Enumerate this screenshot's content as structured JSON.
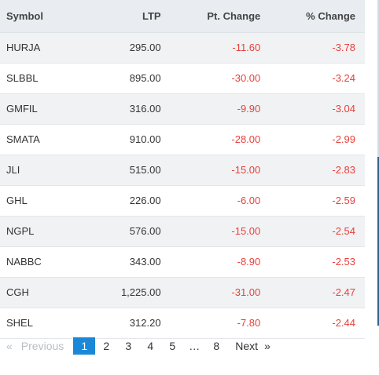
{
  "table": {
    "headers": {
      "symbol": "Symbol",
      "ltp": "LTP",
      "pt_change": "Pt. Change",
      "pct_change": "% Change"
    },
    "rows": [
      {
        "symbol": "HURJA",
        "ltp": "295.00",
        "pt_change": "-11.60",
        "pct_change": "-3.78"
      },
      {
        "symbol": "SLBBL",
        "ltp": "895.00",
        "pt_change": "-30.00",
        "pct_change": "-3.24"
      },
      {
        "symbol": "GMFIL",
        "ltp": "316.00",
        "pt_change": "-9.90",
        "pct_change": "-3.04"
      },
      {
        "symbol": "SMATA",
        "ltp": "910.00",
        "pt_change": "-28.00",
        "pct_change": "-2.99"
      },
      {
        "symbol": "JLI",
        "ltp": "515.00",
        "pt_change": "-15.00",
        "pct_change": "-2.83"
      },
      {
        "symbol": "GHL",
        "ltp": "226.00",
        "pt_change": "-6.00",
        "pct_change": "-2.59"
      },
      {
        "symbol": "NGPL",
        "ltp": "576.00",
        "pt_change": "-15.00",
        "pct_change": "-2.54"
      },
      {
        "symbol": "NABBC",
        "ltp": "343.00",
        "pt_change": "-8.90",
        "pct_change": "-2.53"
      },
      {
        "symbol": "CGH",
        "ltp": "1,225.00",
        "pt_change": "-31.00",
        "pct_change": "-2.47"
      },
      {
        "symbol": "SHEL",
        "ltp": "312.20",
        "pt_change": "-7.80",
        "pct_change": "-2.44"
      }
    ]
  },
  "pagination": {
    "prev_arrow": "«",
    "prev_label": "Previous",
    "pages": [
      "1",
      "2",
      "3",
      "4",
      "5",
      "…",
      "8"
    ],
    "active_page": "1",
    "next_label": "Next",
    "next_arrow": "»"
  },
  "colors": {
    "negative": "#e8413c",
    "active_page_bg": "#1a88d6",
    "header_bg": "#e9edf1"
  }
}
